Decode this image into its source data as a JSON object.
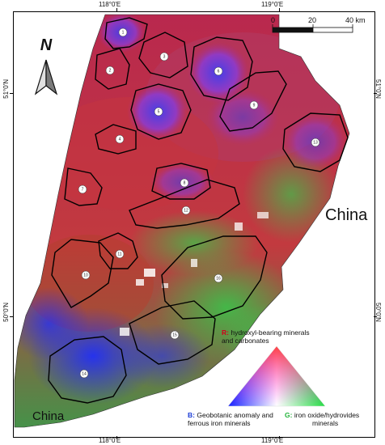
{
  "coordinates": {
    "lon_top_left": "118°0'E",
    "lon_top_right": "119°0'E",
    "lon_bottom_left": "118°0'E",
    "lon_bottom_right": "119°0'E",
    "lat_left_upper": "51°0'N",
    "lat_left_lower": "50°0'N",
    "lat_right_upper": "51°0'N",
    "lat_right_lower": "50°0'N"
  },
  "north_arrow": {
    "letter": "N"
  },
  "scale_bar": {
    "labels": [
      "0",
      "20",
      "40 km"
    ]
  },
  "place_labels": {
    "china_east": "China",
    "china_west": "China"
  },
  "zones": [
    "1",
    "2",
    "3",
    "4",
    "5",
    "6",
    "7",
    "8",
    "9",
    "10",
    "11",
    "12",
    "13",
    "14",
    "15",
    "16"
  ],
  "legend": {
    "red_letter": "R",
    "red_text": "hydroxyl-bearing minerals",
    "red_text_line2": "and carbonates",
    "blue_letter": "B",
    "blue_text": "Geobotanic anomaly and",
    "blue_text_line2": "ferrous iron minerals",
    "green_letter": "G",
    "green_text": "iron oxide/hydrovides",
    "green_text_line2": "minerals",
    "colors": {
      "red": "#ff0000",
      "green": "#00ff00",
      "blue": "#0000ff"
    }
  }
}
